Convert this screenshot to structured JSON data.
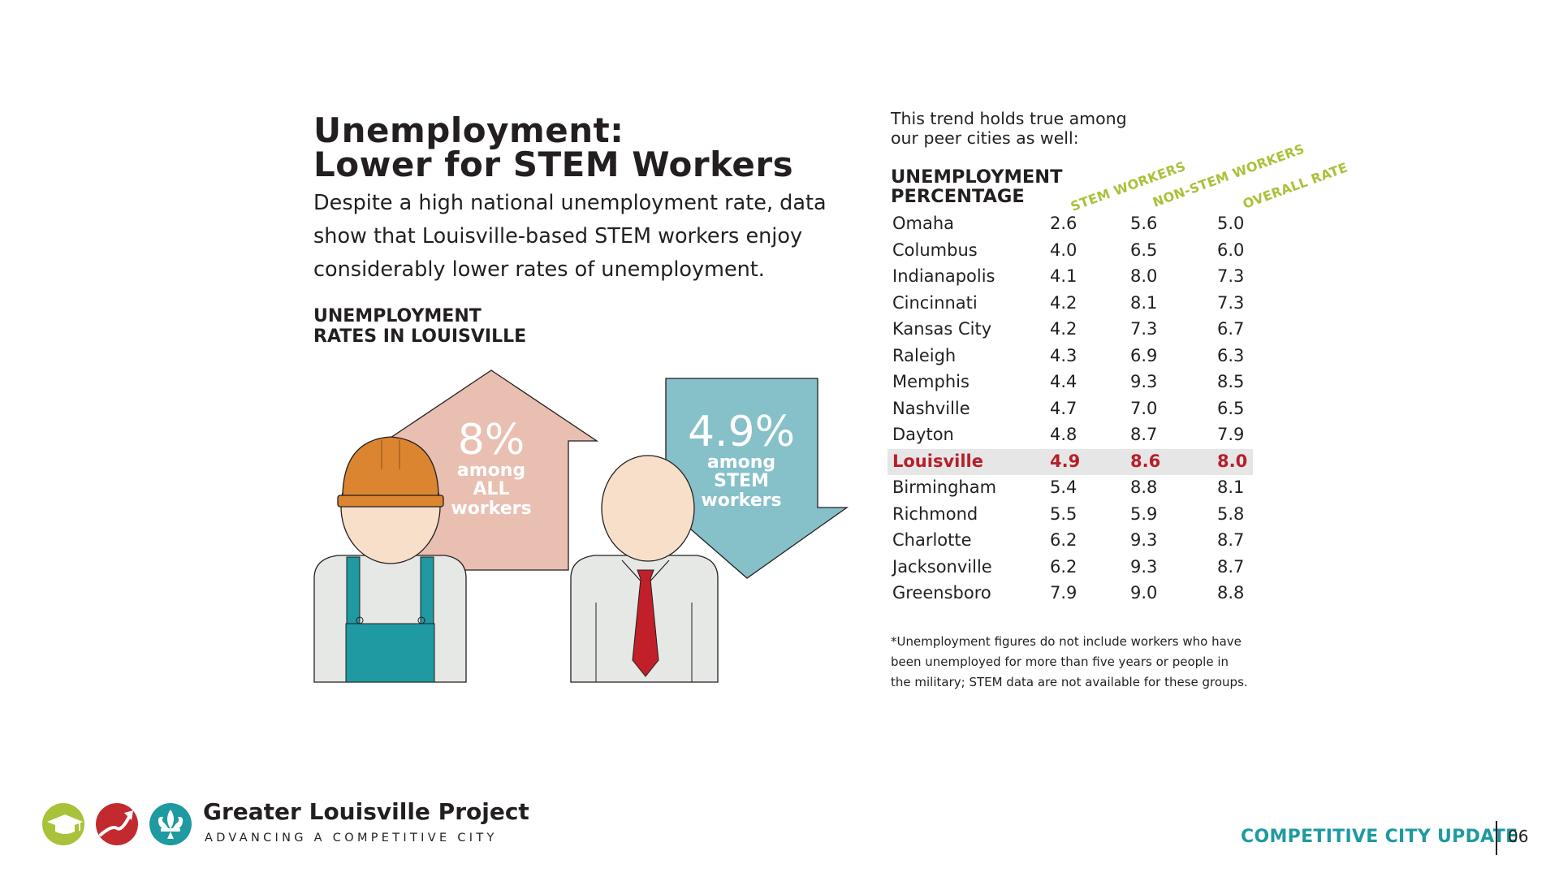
{
  "title": {
    "line1": "Unemployment:",
    "line2": "Lower for STEM Workers"
  },
  "intro": "Despite a high national unemployment rate, data show that Louisville-based STEM workers enjoy considerably lower rates of unemployment.",
  "left_subhead": {
    "line1": "UNEMPLOYMENT",
    "line2": "RATES IN LOUISVILLE"
  },
  "arrows": {
    "all_workers": {
      "value": "8%",
      "line1": "among",
      "line2": "ALL",
      "line3": "workers",
      "color": "#e8bfb0"
    },
    "stem_workers": {
      "value": "4.9%",
      "line1": "among",
      "line2": "STEM",
      "line3": "workers",
      "color": "#86c0c9"
    }
  },
  "trend_note": "This trend holds true among our peer cities as well:",
  "table": {
    "subhead": {
      "line1": "UNEMPLOYMENT",
      "line2": "PERCENTAGE"
    },
    "columns": [
      "STEM WORKERS",
      "NON-STEM WORKERS",
      "OVERALL RATE"
    ],
    "highlight_color": "#b5202a",
    "rows": [
      {
        "city": "Omaha",
        "stem": "2.6",
        "non_stem": "5.6",
        "overall": "5.0"
      },
      {
        "city": "Columbus",
        "stem": "4.0",
        "non_stem": "6.5",
        "overall": "6.0"
      },
      {
        "city": "Indianapolis",
        "stem": "4.1",
        "non_stem": "8.0",
        "overall": "7.3"
      },
      {
        "city": "Cincinnati",
        "stem": "4.2",
        "non_stem": "8.1",
        "overall": "7.3"
      },
      {
        "city": "Kansas City",
        "stem": "4.2",
        "non_stem": "7.3",
        "overall": "6.7"
      },
      {
        "city": "Raleigh",
        "stem": "4.3",
        "non_stem": "6.9",
        "overall": "6.3"
      },
      {
        "city": "Memphis",
        "stem": "4.4",
        "non_stem": "9.3",
        "overall": "8.5"
      },
      {
        "city": "Nashville",
        "stem": "4.7",
        "non_stem": "7.0",
        "overall": "6.5"
      },
      {
        "city": "Dayton",
        "stem": "4.8",
        "non_stem": "8.7",
        "overall": "7.9"
      },
      {
        "city": "Louisville",
        "stem": "4.9",
        "non_stem": "8.6",
        "overall": "8.0",
        "highlight": true
      },
      {
        "city": "Birmingham",
        "stem": "5.4",
        "non_stem": "8.8",
        "overall": "8.1"
      },
      {
        "city": "Richmond",
        "stem": "5.5",
        "non_stem": "5.9",
        "overall": "5.8"
      },
      {
        "city": "Charlotte",
        "stem": "6.2",
        "non_stem": "9.3",
        "overall": "8.7"
      },
      {
        "city": "Jacksonville",
        "stem": "6.2",
        "non_stem": "9.3",
        "overall": "8.7"
      },
      {
        "city": "Greensboro",
        "stem": "7.9",
        "non_stem": "9.0",
        "overall": "8.8"
      }
    ]
  },
  "footnote": "*Unemployment figures do not include workers who have been unemployed for more than five years or people in the military; STEM data are not available for these groups.",
  "footer": {
    "org_name": "Greater Louisville Project",
    "org_tagline": "ADVANCING A COMPETITIVE CITY",
    "section_title": "COMPETITIVE CITY UPDATE",
    "page_number": "06",
    "logo_icons": [
      "graduation-cap-icon",
      "rising-arrow-icon",
      "fleur-de-lis-icon"
    ],
    "colors": {
      "green": "#a8c23a",
      "red": "#c32a2f",
      "teal": "#1e9aa0"
    }
  }
}
